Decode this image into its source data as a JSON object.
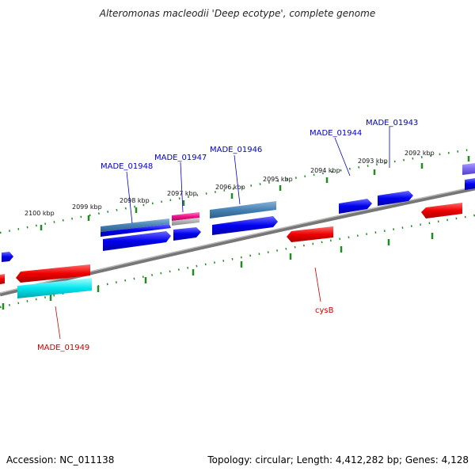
{
  "title": "Alteromonas macleodii 'Deep ecotype', complete genome",
  "footer": {
    "accession": "Accession: NC_011138",
    "summary": "Topology: circular; Length: 4,412,282 bp; Genes: 4,128"
  },
  "scale_labels": [
    "2100 kbp",
    "2099 kbp",
    "2098 kbp",
    "2097 kbp",
    "2096 kbp",
    "2095 kbp",
    "2094 kbp",
    "2093 kbp",
    "2092 kbp"
  ],
  "gene_labels": {
    "made_01948": "MADE_01948",
    "made_01947": "MADE_01947",
    "made_01946": "MADE_01946",
    "made_01944": "MADE_01944",
    "made_01943": "MADE_01943",
    "made_01949": "MADE_01949",
    "cysb": "cysB"
  },
  "colors": {
    "backbone": "#808080",
    "tick": "#228b22",
    "forward_gene": "#0000ee",
    "reverse_gene": "#ee0000",
    "steel_gene": "#4682b4",
    "cyan_gene": "#00e5ee",
    "pink_gene": "#ee1289",
    "purple_gene": "#7b68ee",
    "forward_label": "#0000cc",
    "reverse_label": "#cc0000"
  }
}
